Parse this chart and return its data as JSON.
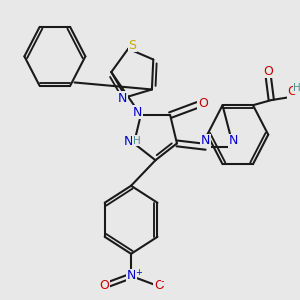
{
  "background_color": "#e8e8e8",
  "line_color": "#1a1a1a",
  "bond_width": 1.5,
  "atom_colors": {
    "N": "#0000cc",
    "O": "#cc0000",
    "S": "#ccaa00",
    "H": "#4a9090",
    "C": "#1a1a1a"
  },
  "font_size": 9,
  "fig_size": [
    3.0,
    3.0
  ],
  "dpi": 100
}
